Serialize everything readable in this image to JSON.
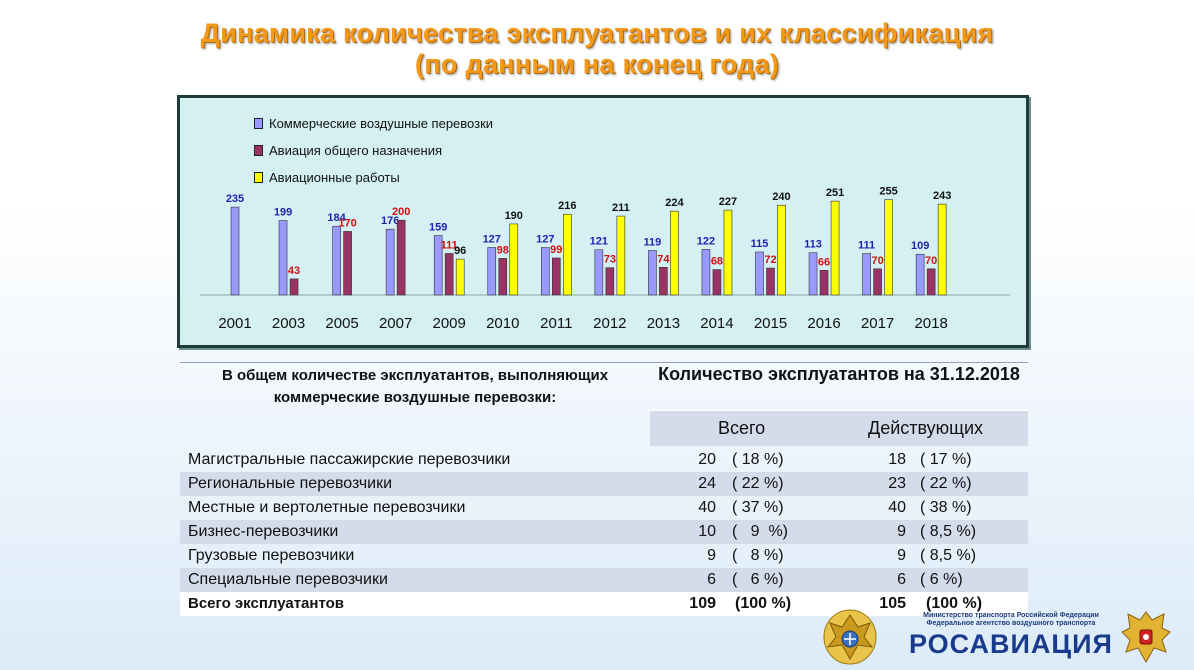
{
  "title": {
    "line1": "Динамика  количества  эксплуатантов и их классификация",
    "line2": "(по данным на конец года)"
  },
  "colors": {
    "commercial": "#9999ff",
    "general": "#993366",
    "works": "#ffff00",
    "commercial_label": "#1f1fb0",
    "general_label": "#d01010",
    "works_label": "#111111",
    "title": "#f39a1c",
    "chart_bg": "#d4f0f2"
  },
  "chart_data": {
    "type": "bar",
    "categories": [
      "2001",
      "2003",
      "2005",
      "2007",
      "2009",
      "2010",
      "2011",
      "2012",
      "2013",
      "2014",
      "2015",
      "2016",
      "2017",
      "2018"
    ],
    "series": [
      {
        "name": "Коммерческие воздушные перевозки",
        "values": [
          235,
          199,
          184,
          176,
          159,
          127,
          127,
          121,
          119,
          122,
          115,
          113,
          111,
          109
        ]
      },
      {
        "name": "Авиация общего назначения",
        "values": [
          null,
          43,
          170,
          200,
          111,
          98,
          99,
          73,
          74,
          68,
          72,
          66,
          70,
          70
        ]
      },
      {
        "name": "Авиационные работы",
        "values": [
          null,
          null,
          null,
          null,
          96,
          190,
          216,
          211,
          224,
          227,
          240,
          251,
          255,
          243
        ]
      }
    ],
    "ylim": [
      0,
      260
    ],
    "legend": "top-left",
    "grid": false,
    "data_labels": true
  },
  "table": {
    "header_left": "В общем количестве эксплуатантов, выполняющих коммерческие воздушные перевозки:",
    "header_right": "Количество эксплуатантов на 31.12.2018",
    "col_total": "Всего",
    "col_active": "Действующих",
    "rows": [
      {
        "name": "Магистральные пассажирские перевозчики",
        "total": "20",
        "total_pct": "( 18 %)",
        "active": "18",
        "active_pct": "( 17 %)"
      },
      {
        "name": "Региональные перевозчики",
        "total": "24",
        "total_pct": "( 22 %)",
        "active": "23",
        "active_pct": "( 22 %)"
      },
      {
        "name": "Местные и вертолетные перевозчики",
        "total": "40",
        "total_pct": "( 37 %)",
        "active": "40",
        "active_pct": "( 38 %)"
      },
      {
        "name": "Бизнес-перевозчики",
        "total": "10",
        "total_pct": "(   9  %)",
        "active": "9",
        "active_pct": "( 8,5 %)"
      },
      {
        "name": "Грузовые перевозчики",
        "total": "9",
        "total_pct": "(   8 %)",
        "active": "9",
        "active_pct": "( 8,5 %)"
      },
      {
        "name": "Специальные перевозчики",
        "total": "6",
        "total_pct": "(   6 %)",
        "active": "6",
        "active_pct": "( 6 %)"
      }
    ],
    "total_row": {
      "name": "Всего эксплуатантов",
      "total": "109",
      "total_pct": "(100 %)",
      "active": "105",
      "active_pct": "(100 %)"
    }
  },
  "logo": {
    "small_line1": "Министерство транспорта Российской Федерации",
    "small_line2": "Федеральное агентство воздушного транспорта",
    "name": "РОСАВИАЦИЯ"
  }
}
